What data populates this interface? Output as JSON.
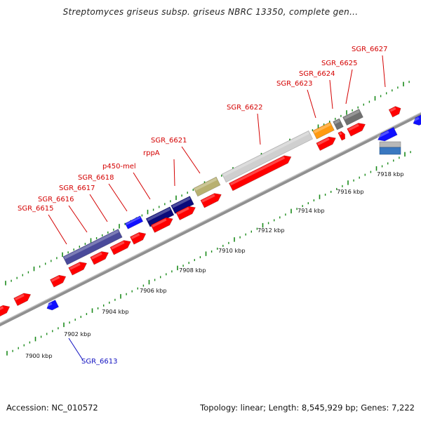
{
  "title": "Streptomyces griseus subsp. griseus NBRC 13350, complete gen...",
  "footer": {
    "accession": "Accession: NC_010572",
    "topology": "Topology: linear; Length: 8,545,929 bp; Genes: 7,222"
  },
  "colors": {
    "forward_gene": "#ff0000",
    "reverse_gene": "#1010ff",
    "cluster_dark_blue": "#0a0a7a",
    "cluster_slate": "#4a4a9a",
    "cluster_olive": "#b8b070",
    "cluster_light_gray": "#cfcfcf",
    "cluster_orange": "#ff9a10",
    "cluster_gray": "#707070",
    "cluster_steel_blue": "#3a78c0",
    "backbone": "#909090",
    "tick_green": "#1a8a1a",
    "forward_label": "#d40000",
    "reverse_label": "#1010c0"
  },
  "scale_labels": [
    "7900 kbp",
    "7902 kbp",
    "7904 kbp",
    "7906 kbp",
    "7908 kbp",
    "7910 kbp",
    "7912 kbp",
    "7914 kbp",
    "7916 kbp",
    "7918 kbp"
  ],
  "gene_labels": {
    "forward": [
      "SGR_6615",
      "SGR_6616",
      "SGR_6617",
      "SGR_6618",
      "p450-mel",
      "rppA",
      "SGR_6621",
      "SGR_6622",
      "SGR_6623",
      "SGR_6624",
      "SGR_6625",
      "SGR_6627"
    ],
    "reverse": [
      "SGR_6613"
    ]
  }
}
